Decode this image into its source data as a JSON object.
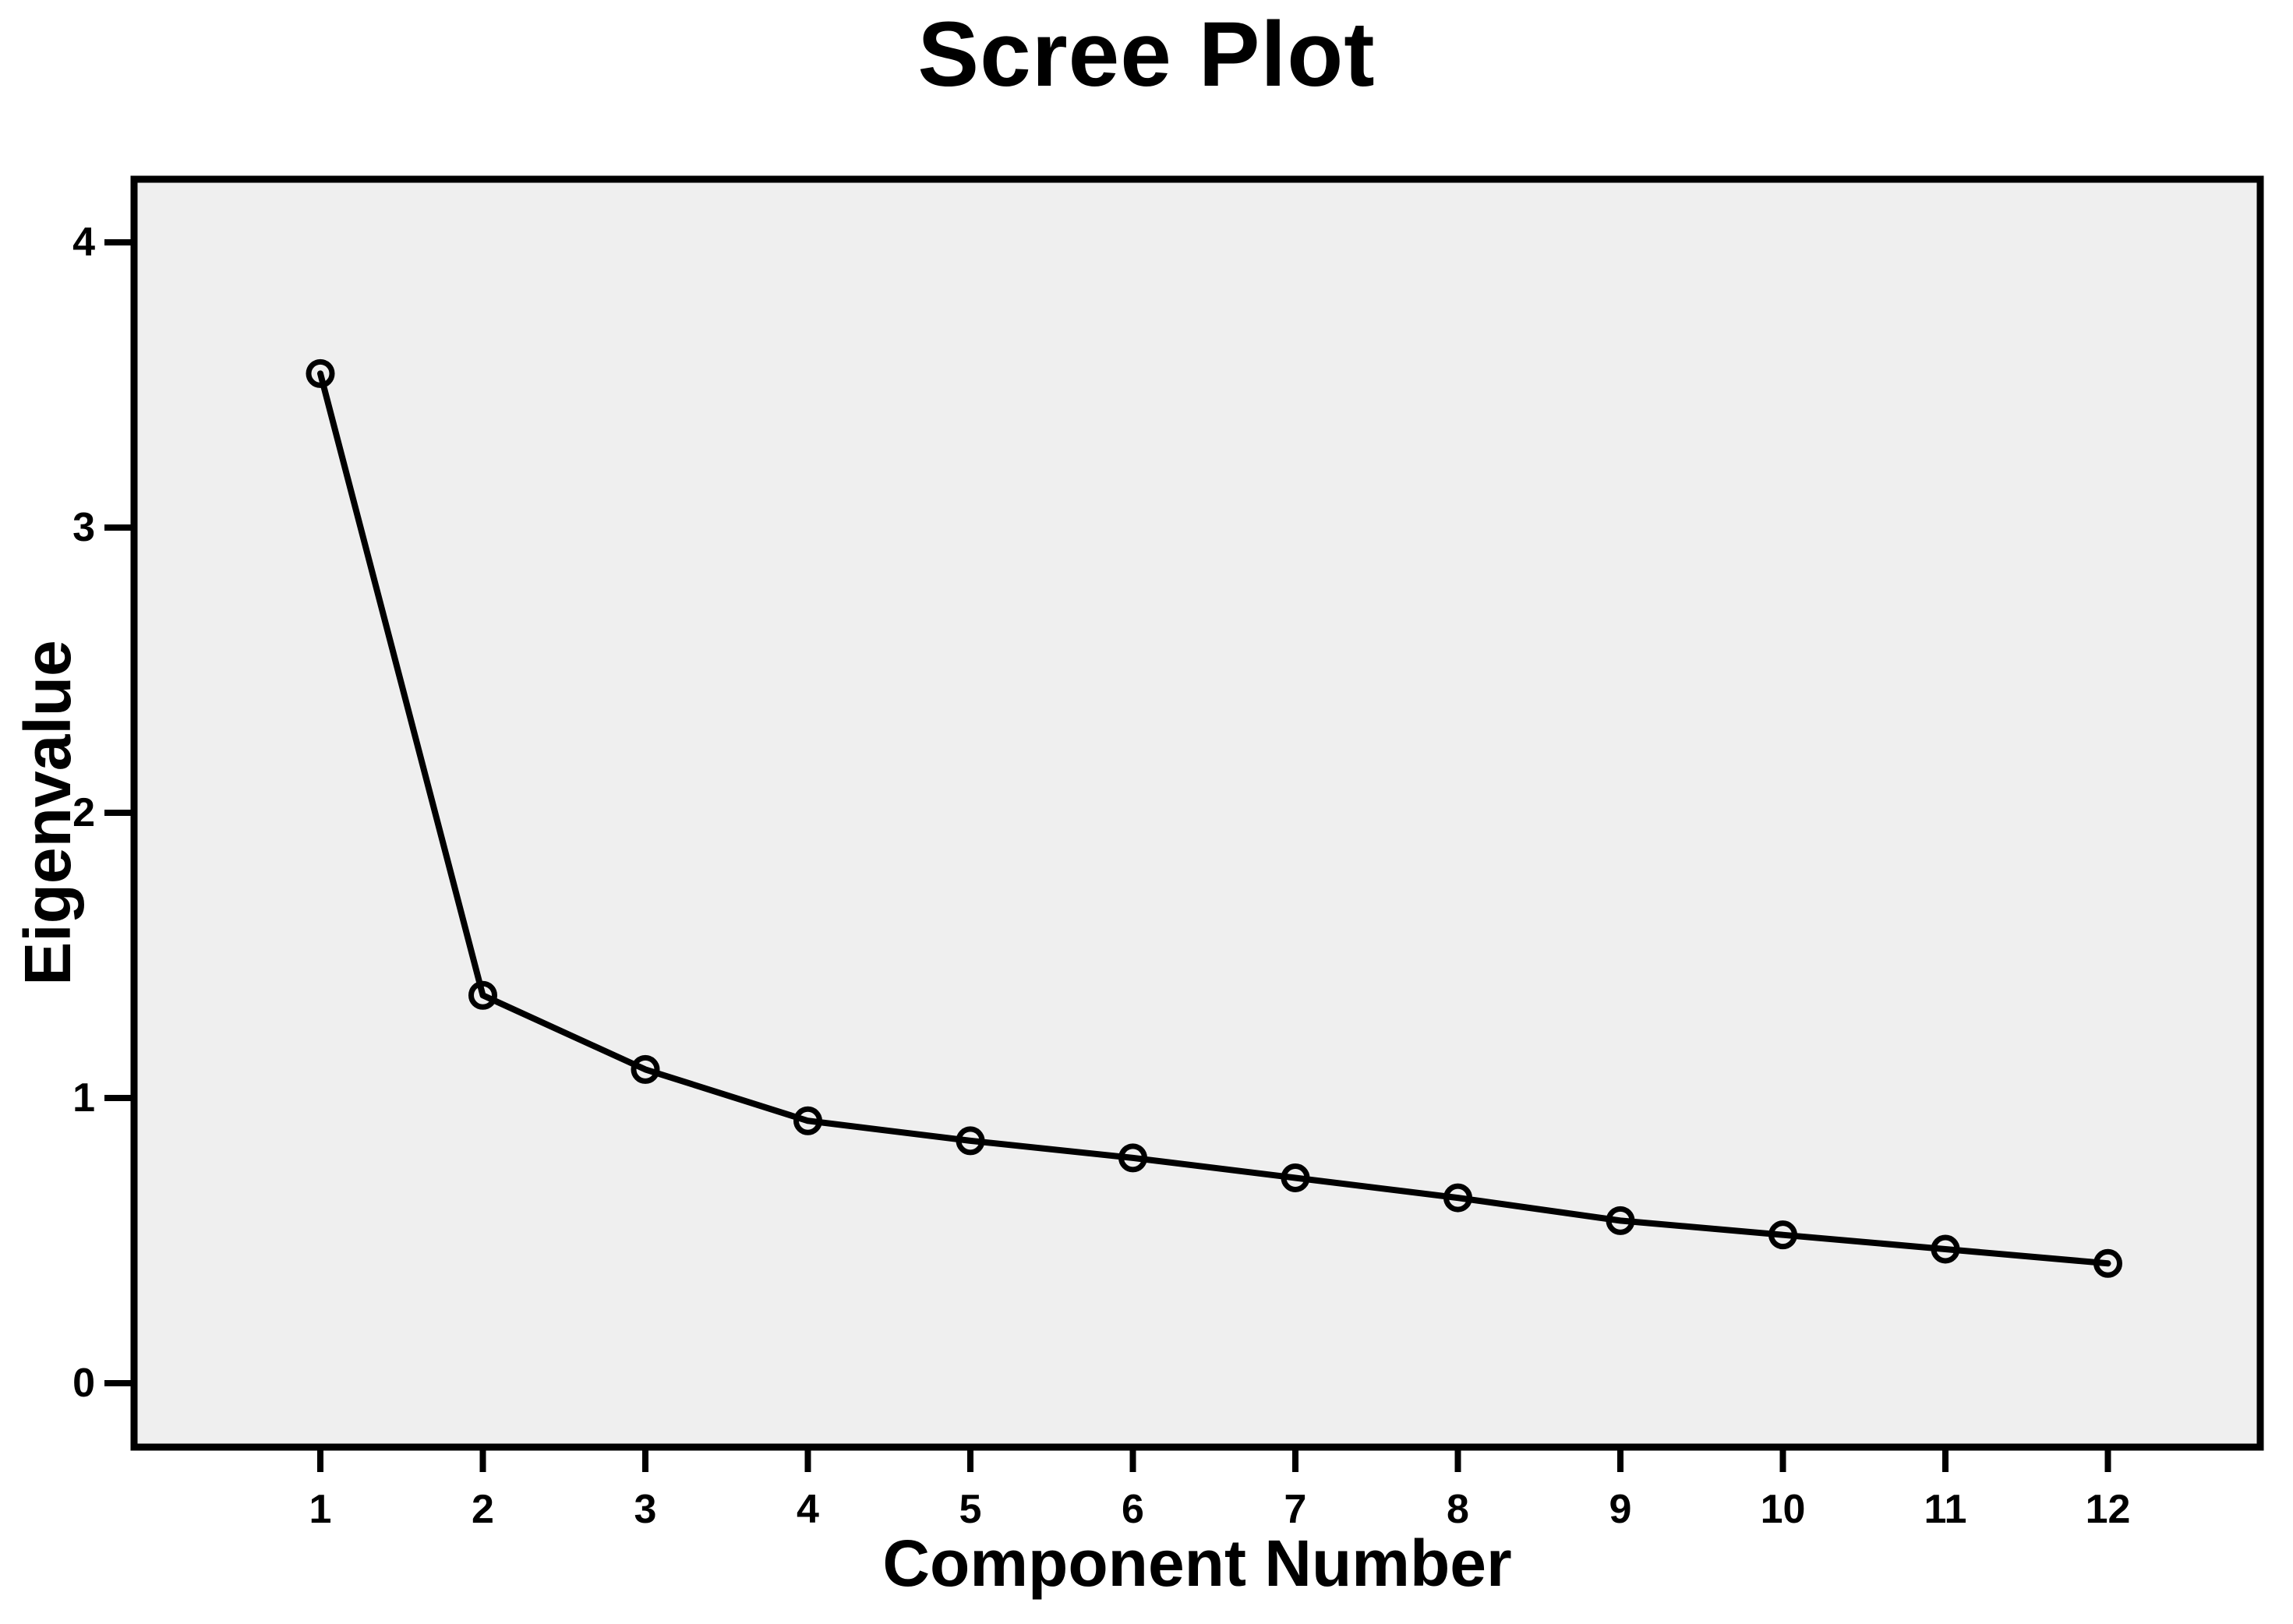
{
  "title": "Scree Plot",
  "chart_data": {
    "type": "line",
    "title": "Scree Plot",
    "xlabel": "Component Number",
    "ylabel": "Eigenvalue",
    "categories": [
      1,
      2,
      3,
      4,
      5,
      6,
      7,
      8,
      9,
      10,
      11,
      12
    ],
    "series": [
      {
        "name": "Eigenvalue",
        "values": [
          3.54,
          1.36,
          1.1,
          0.92,
          0.85,
          0.79,
          0.72,
          0.65,
          0.57,
          0.52,
          0.47,
          0.42
        ]
      }
    ],
    "y_ticks": [
      0,
      1,
      2,
      3,
      4
    ],
    "ylim": [
      -0.22,
      4.22
    ],
    "xlim_categories": [
      0.15,
      12.95
    ],
    "grid": false,
    "legend": false,
    "marker": "open-circle",
    "line_color": "#000000",
    "marker_color": "#000000",
    "plot_bg": "#efefef",
    "outer_bg": "#ffffff",
    "text_color": "#000000",
    "frame_color": "#000000"
  }
}
